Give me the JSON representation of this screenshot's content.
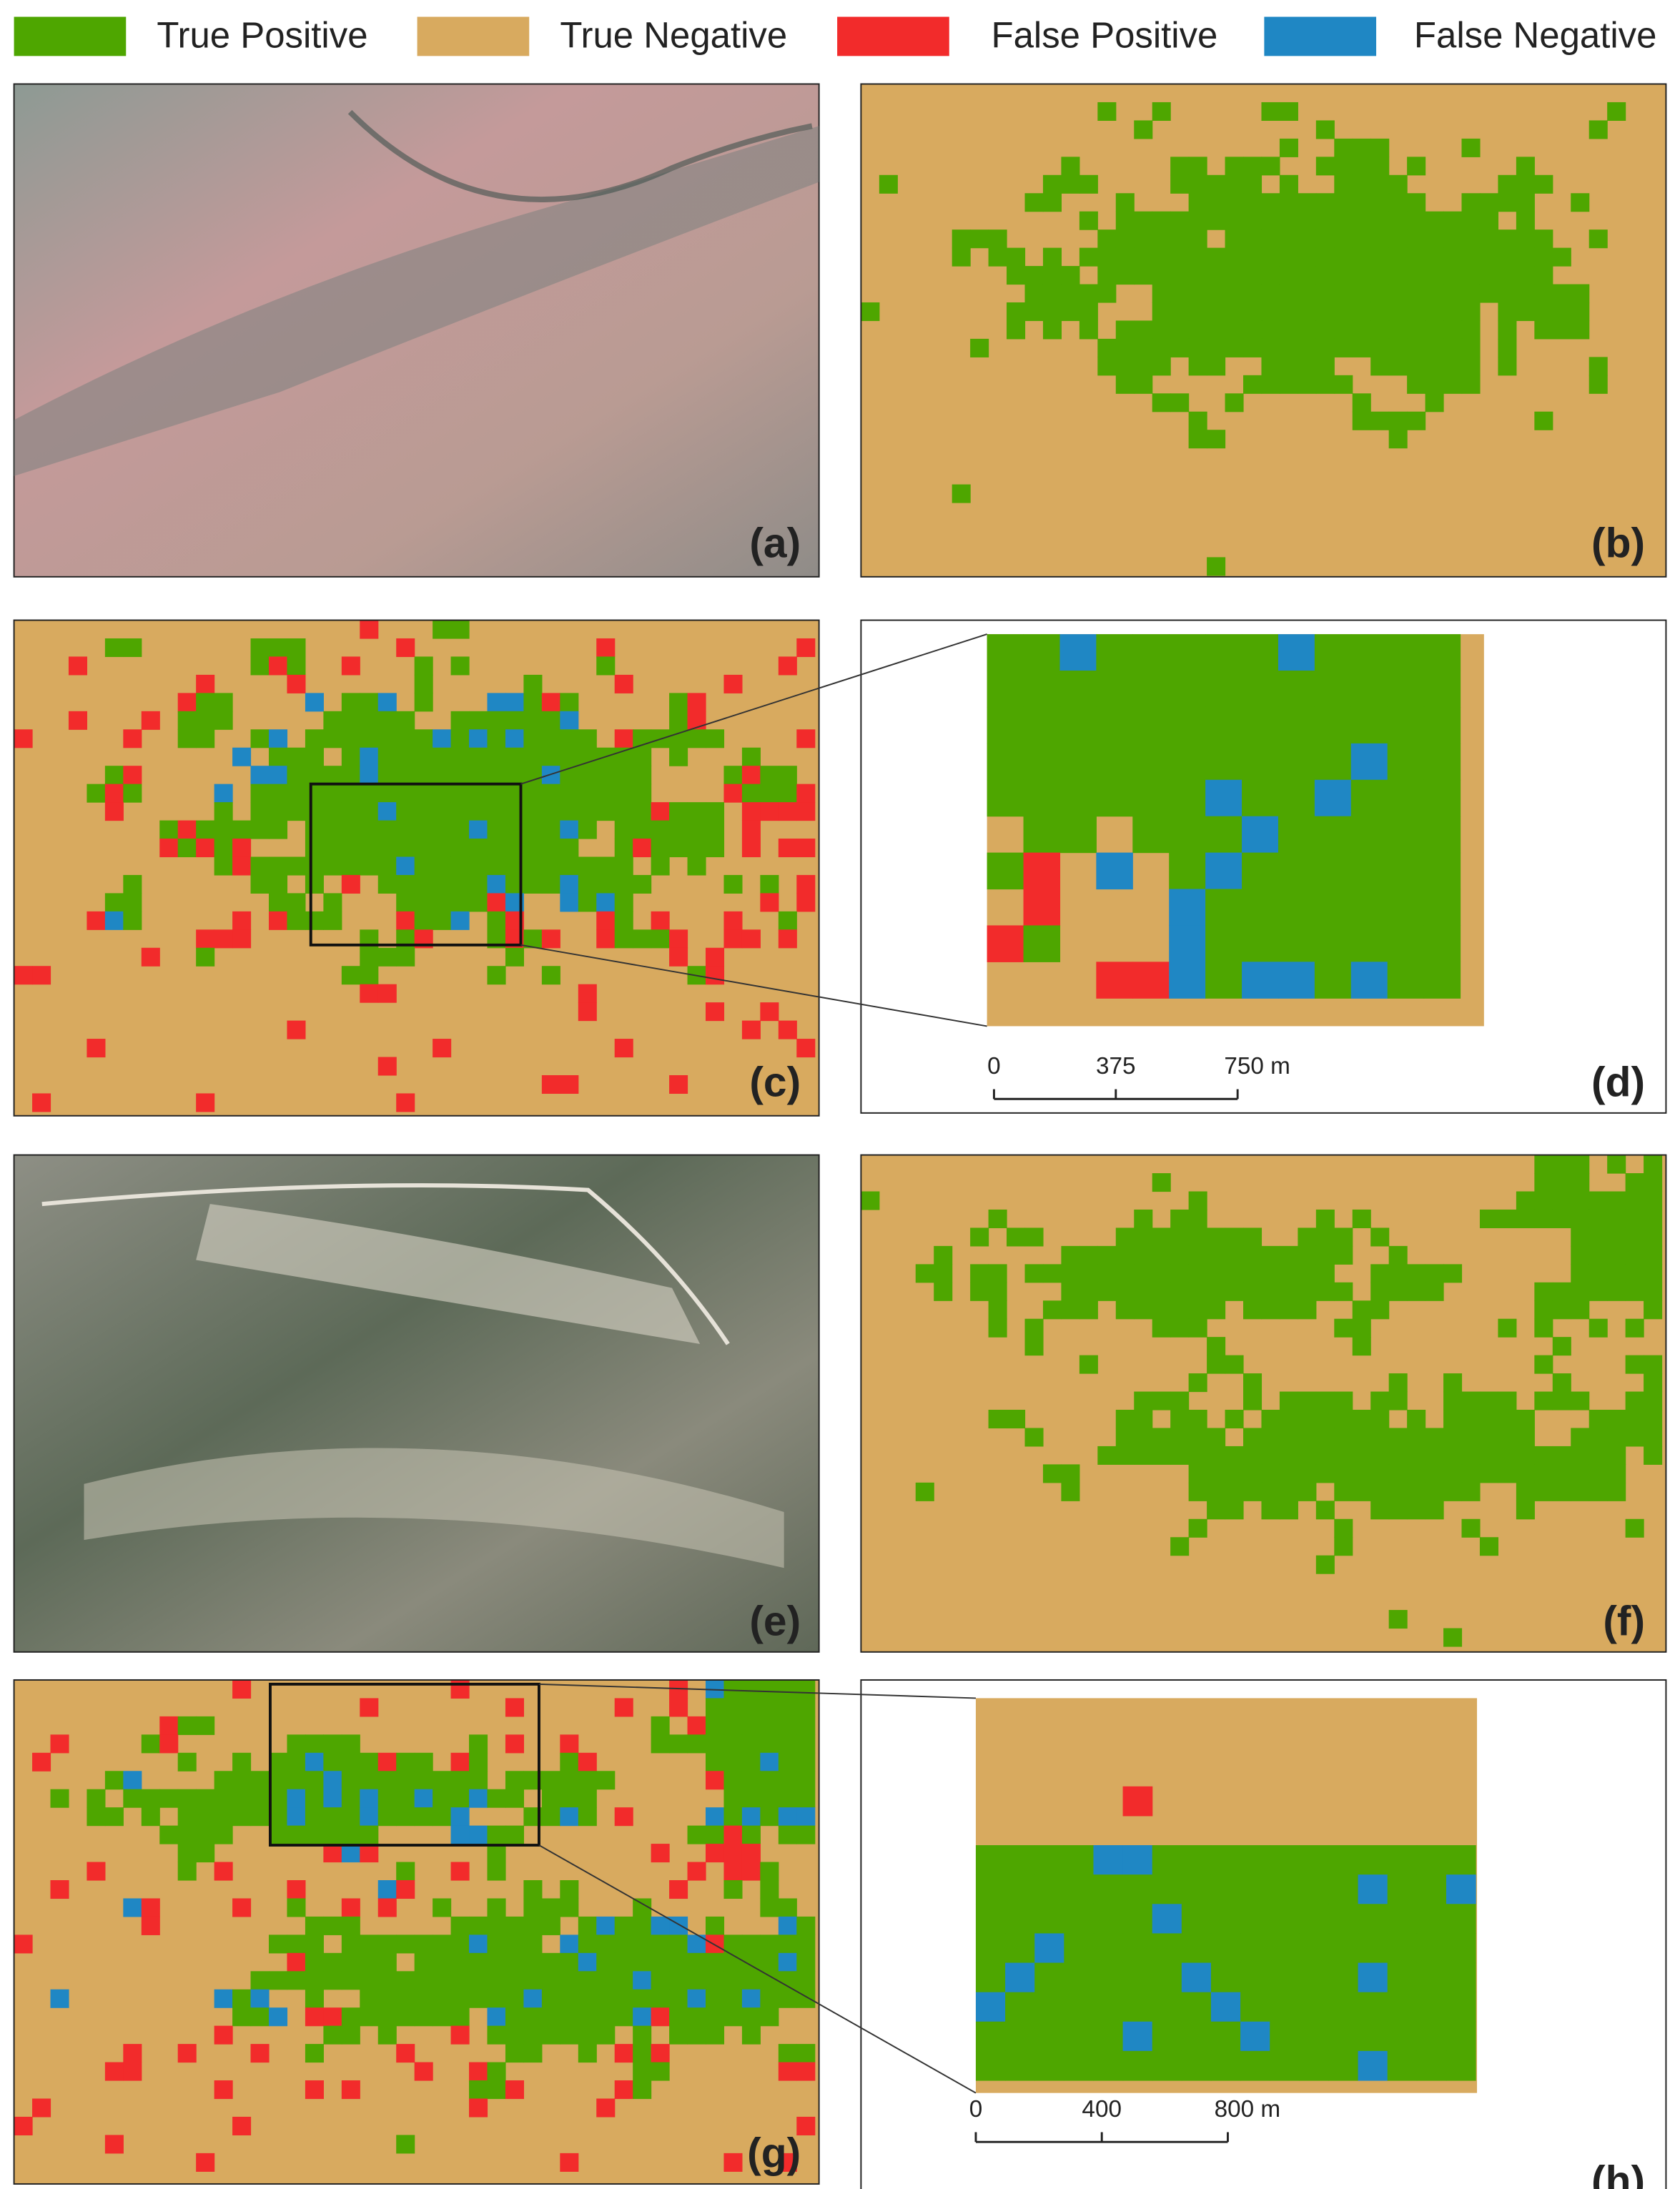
{
  "legend": [
    {
      "label": "True Positive",
      "color": "#4ea600"
    },
    {
      "label": "True Negative",
      "color": "#d8aa5f"
    },
    {
      "label": "False Positive",
      "color": "#f22b2b"
    },
    {
      "label": "False Negative",
      "color": "#1f87c4"
    }
  ],
  "panels": [
    {
      "label": "(a)"
    },
    {
      "label": "(b)"
    },
    {
      "label": "(c)"
    },
    {
      "label": "(d)"
    },
    {
      "label": "(e)"
    },
    {
      "label": "(f)"
    },
    {
      "label": "(g)"
    },
    {
      "label": "(h)"
    }
  ],
  "scale_bars": [
    {
      "ticks": [
        "0",
        "375",
        "750 m"
      ]
    },
    {
      "ticks": [
        "0",
        "400",
        "800 m"
      ]
    }
  ]
}
